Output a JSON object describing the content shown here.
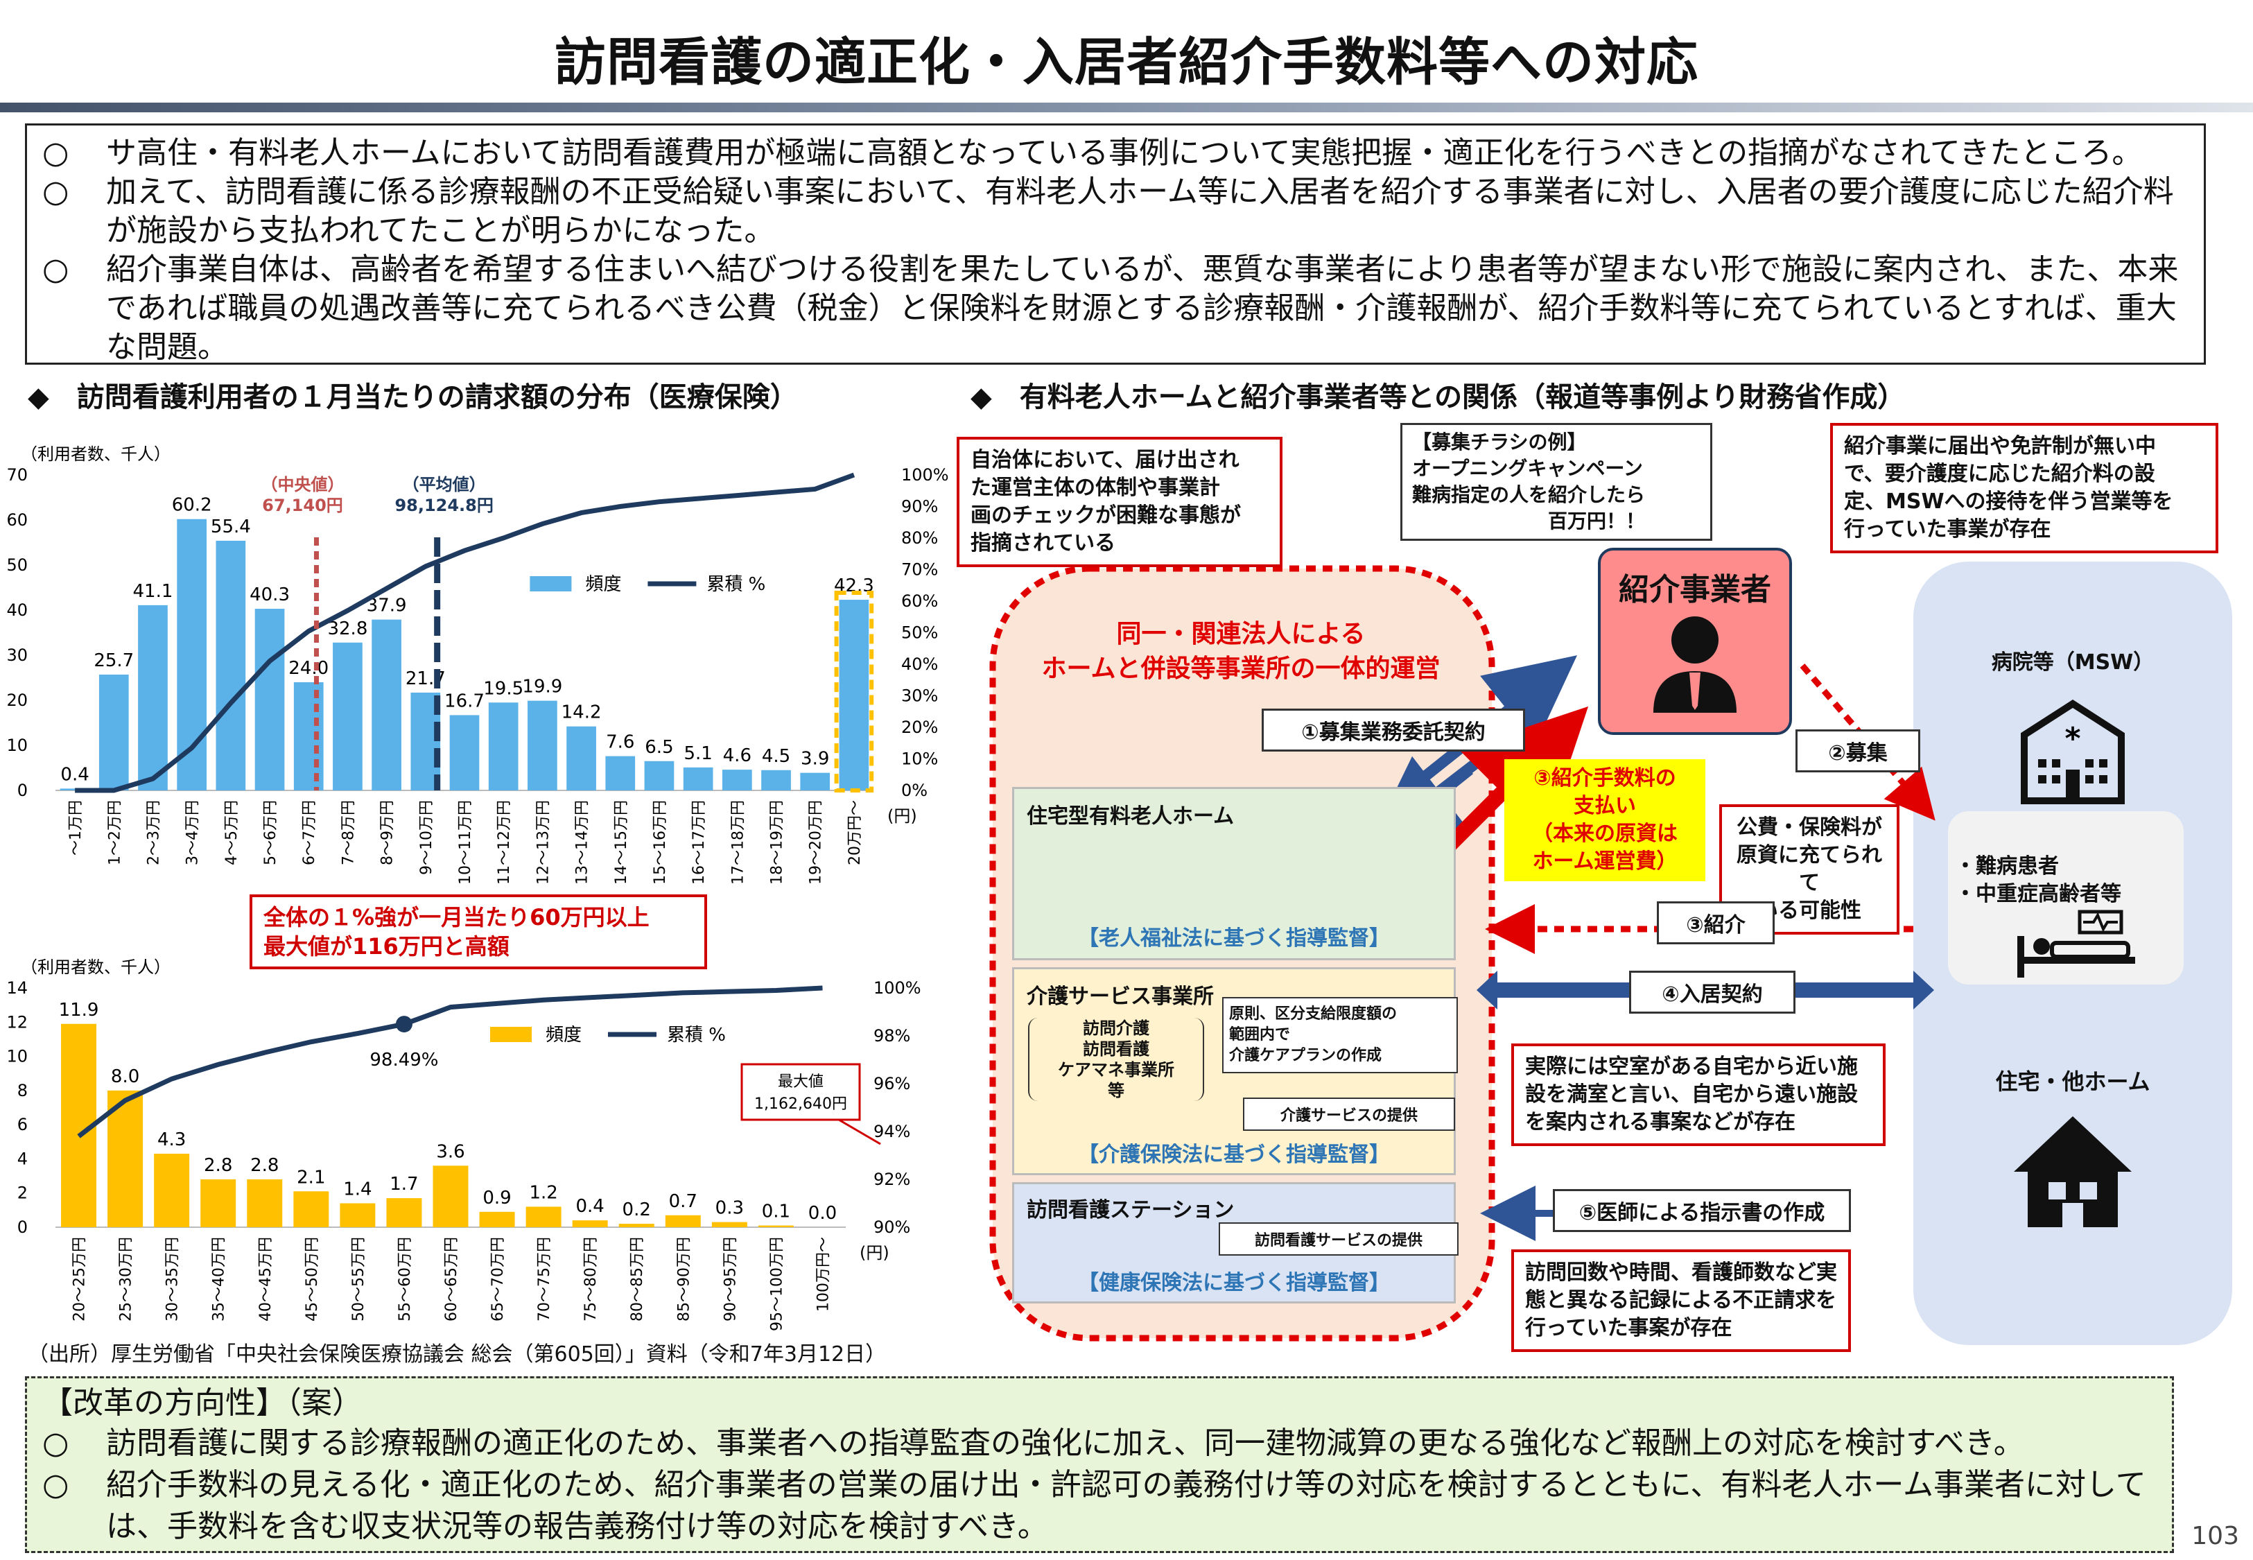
{
  "title": "訪問看護の適正化・入居者紹介手数料等への対応",
  "intro": {
    "bullet": "○",
    "items": [
      "サ高住・有料老人ホームにおいて訪問看護費用が極端に高額となっている事例について実態把握・適正化を行うべきとの指摘がなされてきたところ。",
      "加えて、訪問看護に係る診療報酬の不正受給疑い事案において、有料老人ホーム等に入居者を紹介する事業者に対し、入居者の要介護度に応じた紹介料が施設から支払われてたことが明らかになった。",
      "紹介事業自体は、高齢者を希望する住まいへ結びつける役割を果たしているが、悪質な事業者により患者等が望まない形で施設に案内され、また、本来であれば職員の処遇改善等に充てられるべき公費（税金）と保険料を財源とする診療報酬・介護報酬が、紹介手数料等に充てられているとすれば、重大な問題。"
    ]
  },
  "left_heading": "◆　訪問看護利用者の１月当たりの請求額の分布（医療保険）",
  "right_heading": "◆　有料老人ホームと紹介事業者等との関係（報道等事例より財務省作成）",
  "chart_data": [
    {
      "type": "bar",
      "ylabel": "（利用者数、千人）",
      "xunit": "(円)",
      "ylim": [
        0,
        70
      ],
      "y2lim": [
        0,
        100
      ],
      "yticks": [
        0,
        10,
        20,
        30,
        40,
        50,
        60,
        70
      ],
      "y2ticks": [
        "0%",
        "10%",
        "20%",
        "30%",
        "40%",
        "50%",
        "60%",
        "70%",
        "80%",
        "90%",
        "100%"
      ],
      "categories": [
        "～1万円",
        "1～2万円",
        "2～3万円",
        "3～4万円",
        "4～5万円",
        "5～6万円",
        "6～7万円",
        "7～8万円",
        "8～9万円",
        "9～10万円",
        "10～11万円",
        "11～12万円",
        "12～13万円",
        "13～14万円",
        "14～15万円",
        "15～16万円",
        "16～17万円",
        "17～18万円",
        "18～19万円",
        "19～20万円",
        "20万円～"
      ],
      "series": [
        {
          "name": "頻度",
          "kind": "bar",
          "color": "#5bb2e8",
          "values": [
            0.4,
            25.7,
            41.1,
            60.2,
            55.4,
            40.3,
            24.0,
            32.8,
            37.9,
            21.7,
            16.7,
            19.5,
            19.9,
            14.2,
            7.6,
            6.5,
            5.1,
            4.6,
            4.5,
            3.9,
            42.3
          ],
          "labels": [
            "0.4",
            "25.7",
            "41.1",
            "60.2",
            "55.4",
            "40.3",
            "24.0",
            "32.8",
            "37.9",
            "21.7",
            "16.7",
            "19.5",
            "19.9",
            "14.2",
            "7.6",
            "6.5",
            "5.1",
            "4.6",
            "4.5",
            "3.9",
            "42.3"
          ]
        },
        {
          "name": "累積 %",
          "kind": "line",
          "color": "#1f3a5f",
          "axis": "right",
          "values": [
            0,
            0,
            3.7,
            13.5,
            27.7,
            41.0,
            50.5,
            57.0,
            64.0,
            71.0,
            76.0,
            80.0,
            84.5,
            88.0,
            90.0,
            91.5,
            92.5,
            93.5,
            94.5,
            95.5,
            100
          ]
        }
      ],
      "annotations": {
        "median_label": "（中央値）",
        "median_value": "67,140円",
        "median_color": "#c0504d",
        "median_pos": 6.2,
        "mean_label": "（平均値）",
        "mean_value": "98,124.8円",
        "mean_color": "#1f3a5f",
        "mean_pos": 9.3
      }
    },
    {
      "type": "bar",
      "ylabel": "（利用者数、千人）",
      "xunit": "(円)",
      "ylim": [
        0,
        14
      ],
      "y2lim": [
        90,
        100
      ],
      "yticks": [
        0,
        2,
        4,
        6,
        8,
        10,
        12,
        14
      ],
      "y2ticks": [
        "90%",
        "92%",
        "94%",
        "96%",
        "98%",
        "100%"
      ],
      "categories": [
        "20～25万円",
        "25～30万円",
        "30～35万円",
        "35～40万円",
        "40～45万円",
        "45～50万円",
        "50～55万円",
        "55～60万円",
        "60～65万円",
        "65～70万円",
        "70～75万円",
        "75～80万円",
        "80～85万円",
        "85～90万円",
        "90～95万円",
        "95～100万円",
        "100万円～"
      ],
      "series": [
        {
          "name": "頻度",
          "kind": "bar",
          "color": "#ffc000",
          "values": [
            11.9,
            8.0,
            4.3,
            2.8,
            2.8,
            2.1,
            1.4,
            1.7,
            3.6,
            0.9,
            1.2,
            0.4,
            0.2,
            0.7,
            0.3,
            0.1,
            0.0
          ],
          "labels": [
            "11.9",
            "8.0",
            "4.3",
            "2.8",
            "2.8",
            "2.1",
            "1.4",
            "1.7",
            "3.6",
            "0.9",
            "1.2",
            "0.4",
            "0.2",
            "0.7",
            "0.3",
            "0.1",
            "0.0"
          ]
        },
        {
          "name": "累積 %",
          "kind": "line",
          "color": "#1f3a5f",
          "axis": "right",
          "values": [
            93.8,
            95.3,
            96.2,
            96.8,
            97.3,
            97.75,
            98.1,
            98.49,
            99.2,
            99.35,
            99.5,
            99.6,
            99.7,
            99.8,
            99.85,
            99.9,
            100
          ]
        }
      ],
      "annotations": {
        "point_label": "98.49%",
        "max_label": "最大値",
        "max_value": "1,162,640円"
      }
    }
  ],
  "callout_between": "全体の１%強が一月当たり60万円以上\n最大値が116万円と高額",
  "source": "（出所）厚生労働省「中央社会保険医療協議会 総会（第605回）」資料（令和7年3月12日）",
  "diagram": {
    "callout_municipality": "自治体において、届け出され\nた運営主体の体制や事業計\n画のチェックが困難な事態が\n指摘されている",
    "flyer": "【募集チラシの例】\nオープニングキャンペーン\n難病指定の人を紹介したら\n　　　　　　　百万円！！",
    "callout_no_license": "紹介事業に届出や免許制が無い中\nで、要介護度に応じた紹介料の設\n定、MSWへの接待を伴う営業等を\n行っていた事業が存在",
    "agent": "紹介事業者",
    "group_title": "同一・関連法人による\nホームと併設等事業所の一体的運営",
    "arrow1": "①募集業務委託契約",
    "arrow2": "②募集",
    "arrow3_fee": "③紹介手数料の\n支払い\n（本来の原資は\nホーム運営費）",
    "public_funds": "公費・保険料が\n原資に充てられて\nいる可能性",
    "arrow3_intro": "③紹介",
    "arrow4": "④入居契約",
    "arrow5": "⑤医師による指示書の作成",
    "home": "住宅型有料老人ホーム",
    "home_law": "【老人福祉法に基づく指導監督】",
    "care": "介護サービス事業所",
    "care_sub": "訪問介護\n訪問看護\nケアマネ事業所\n等",
    "care_plan": "原則、区分支給限度額の\n範囲内で\n介護ケアプランの作成",
    "care_service": "介護サービスの提供",
    "care_law": "【介護保険法に基づく指導監督】",
    "nursing": "訪問看護ステーション",
    "nursing_service": "訪問看護サービスの提供",
    "nursing_law": "【健康保険法に基づく指導監督】",
    "callout_vacancy": "実際には空室がある自宅から近い施\n設を満室と言い、自宅から遠い施設\nを案内される事案などが存在",
    "callout_billing": "訪問回数や時間、看護師数など実\n態と異なる記録による不正請求を\n行っていた事案が存在",
    "hospital": "病院等（MSW）",
    "patients": "・難病患者\n・中重症高齢者等",
    "residence": "住宅・他ホーム"
  },
  "reform": {
    "title": "【改革の方向性】（案）",
    "bullet": "○",
    "items": [
      "訪問看護に関する診療報酬の適正化のため、事業者への指導監査の強化に加え、同一建物減算の更なる強化など報酬上の対応を検討すべき。",
      "紹介手数料の見える化・適正化のため、紹介事業者の営業の届け出・許認可の義務付け等の対応を検討するとともに、有料老人ホーム事業者に対しては、手数料を含む収支状況等の報告義務付け等の対応を検討すべき。"
    ]
  },
  "page_number": "103"
}
